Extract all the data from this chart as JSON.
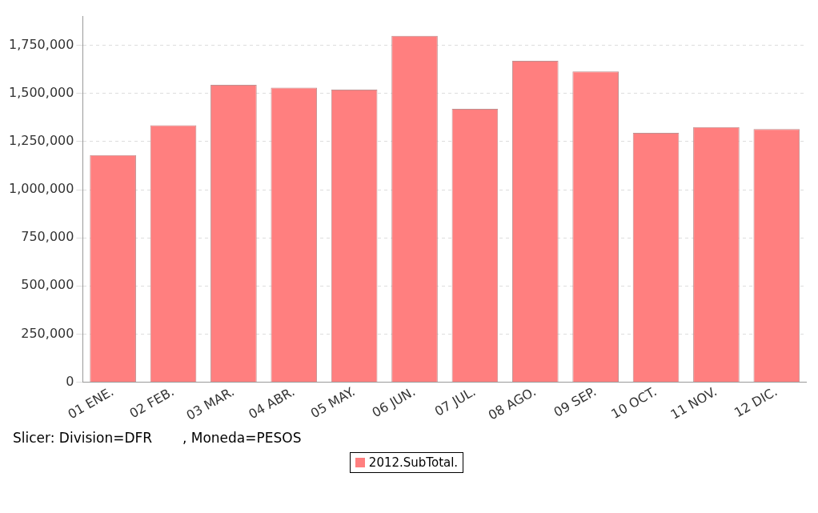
{
  "chart_data": {
    "type": "bar",
    "categories": [
      "01 ENE.",
      "02 FEB.",
      "03 MAR.",
      "04 ABR.",
      "05 MAY.",
      "06 JUN.",
      "07 JUL.",
      "08 AGO.",
      "09 SEP.",
      "10 OCT.",
      "11 NOV.",
      "12 DIC."
    ],
    "series": [
      {
        "name": "2012.SubTotal.",
        "color": "#ff7f7f",
        "values": [
          1180000,
          1335000,
          1545000,
          1530000,
          1520000,
          1800000,
          1420000,
          1670000,
          1615000,
          1295000,
          1325000,
          1315000
        ]
      }
    ],
    "ylim": [
      0,
      1900000
    ],
    "yticks": [
      0,
      {
        "value": 250000,
        "label": "250,000"
      },
      {
        "value": 500000,
        "label": "500,000"
      },
      {
        "value": 750000,
        "label": "750,000"
      },
      {
        "value": 1000000,
        "label": "1,000,000"
      },
      {
        "value": 1250000,
        "label": "1,250,000"
      },
      {
        "value": 1500000,
        "label": "1,500,000"
      },
      {
        "value": 1750000,
        "label": "1,750,000"
      }
    ],
    "grid": "y",
    "legend": "bottom",
    "annotations": [
      "Slicer: Division=DFR       , Moneda=PESOS"
    ]
  }
}
